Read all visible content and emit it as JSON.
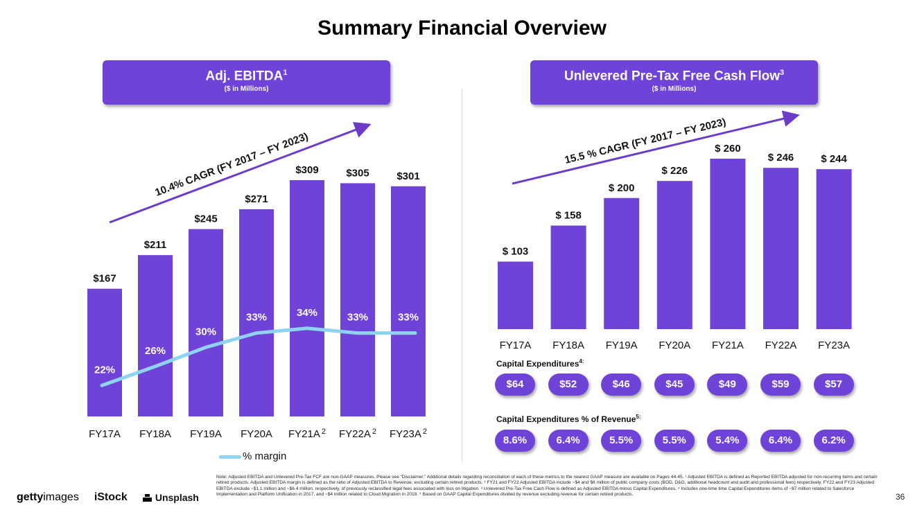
{
  "page": {
    "title": "Summary Financial Overview",
    "page_number": "36"
  },
  "left_banner": {
    "title": "Adj. EBITDA",
    "title_sup": "1",
    "subtitle": "($ in Millions)"
  },
  "right_banner": {
    "title": "Unlevered Pre-Tax Free Cash Flow",
    "title_sup": "3",
    "subtitle": "($ in Millions)"
  },
  "capex": {
    "label": "Capital Expenditures",
    "label_sup": "4:",
    "values": [
      "$64",
      "$52",
      "$46",
      "$45",
      "$49",
      "$59",
      "$57"
    ]
  },
  "capex_pct": {
    "label": "Capital Expenditures % of Revenue",
    "label_sup": "5:",
    "values": [
      "8.6%",
      "6.4%",
      "5.5%",
      "5.5%",
      "5.4%",
      "6.4%",
      "6.2%"
    ]
  },
  "legend": {
    "margin_label": "% margin"
  },
  "footnote": "Note: Adjusted EBITDA and Unlevered Pre-Tax FCF are non-GAAP measures. Please see “Disclaimer.” Additional details regarding reconciliation of each of these metrics to the nearest GAAP measure are available on Pages 44-45. ¹ Adjusted EBITDA is defined as Reported EBITDA adjusted for non-recurring items and certain retired products. Adjusted EBITDA margin is defined as the ratio of Adjusted EBITDA to Revenue, excluding certain retired products. ² FY21 and FY22 Adjusted EBITDA include ~$4 and $8 million of public company costs (BOD, D&O, additional headcount and audit and professional fees) respectively. FY22 and FY23 Adjusted EBITDA exclude ~$1.1 million and ~$6.4 million, respectively, of previously reclassified legal fees associated with loss on litigation. ³ Unlevered Pre-Tax Free Cash Flow is defined as Adjusted EBITDA minus Capital Expenditures. ⁴ Includes one-time time Capital Expenditures items of ~$7 million related to Salesforce Implementation and Platform Unification in 2017, and ~$4 million related to Cloud Migration in 2018. ⁵ Based on GAAP Capital Expenditures divided by revenue excluding revenue for certain retired products.",
  "logos": {
    "getty_bold": "getty",
    "getty_rest": "images",
    "istock": "iStock",
    "unsplash": "Unsplash"
  },
  "colors": {
    "bar": "#7043d8",
    "margin_line": "#8fd3f2",
    "arrow": "#6a3cc9"
  },
  "chart_data": [
    {
      "type": "bar",
      "title": "Adj. EBITDA ($ in Millions)",
      "categories": [
        "FY17A",
        "FY18A",
        "FY19A",
        "FY20A",
        "FY21A",
        "FY22A",
        "FY23A"
      ],
      "category_sups": [
        "",
        "",
        "",
        "",
        "2",
        "2",
        "2"
      ],
      "values": [
        167,
        211,
        245,
        271,
        309,
        305,
        301
      ],
      "value_labels": [
        "$167",
        "$211",
        "$245",
        "$271",
        "$309",
        "$305",
        "$301"
      ],
      "ylim": [
        0,
        340
      ],
      "cagr_label": "10.4% CAGR (FY 2017 – FY 2023)",
      "margin_series": {
        "name": "% margin",
        "values": [
          22,
          26,
          30,
          33,
          34,
          33,
          33
        ],
        "labels": [
          "22%",
          "26%",
          "30%",
          "33%",
          "34%",
          "33%",
          "33%"
        ],
        "ylim": [
          0,
          60
        ]
      }
    },
    {
      "type": "bar",
      "title": "Unlevered Pre-Tax Free Cash Flow ($ in Millions)",
      "categories": [
        "FY17A",
        "FY18A",
        "FY19A",
        "FY20A",
        "FY21A",
        "FY22A",
        "FY23A"
      ],
      "values": [
        103,
        158,
        200,
        226,
        260,
        246,
        244
      ],
      "value_labels": [
        "$ 103",
        "$ 158",
        "$ 200",
        "$ 226",
        "$ 260",
        "$ 246",
        "$ 244"
      ],
      "ylim": [
        0,
        290
      ],
      "cagr_label": "15.5 % CAGR (FY 2017 – FY 2023)"
    }
  ]
}
